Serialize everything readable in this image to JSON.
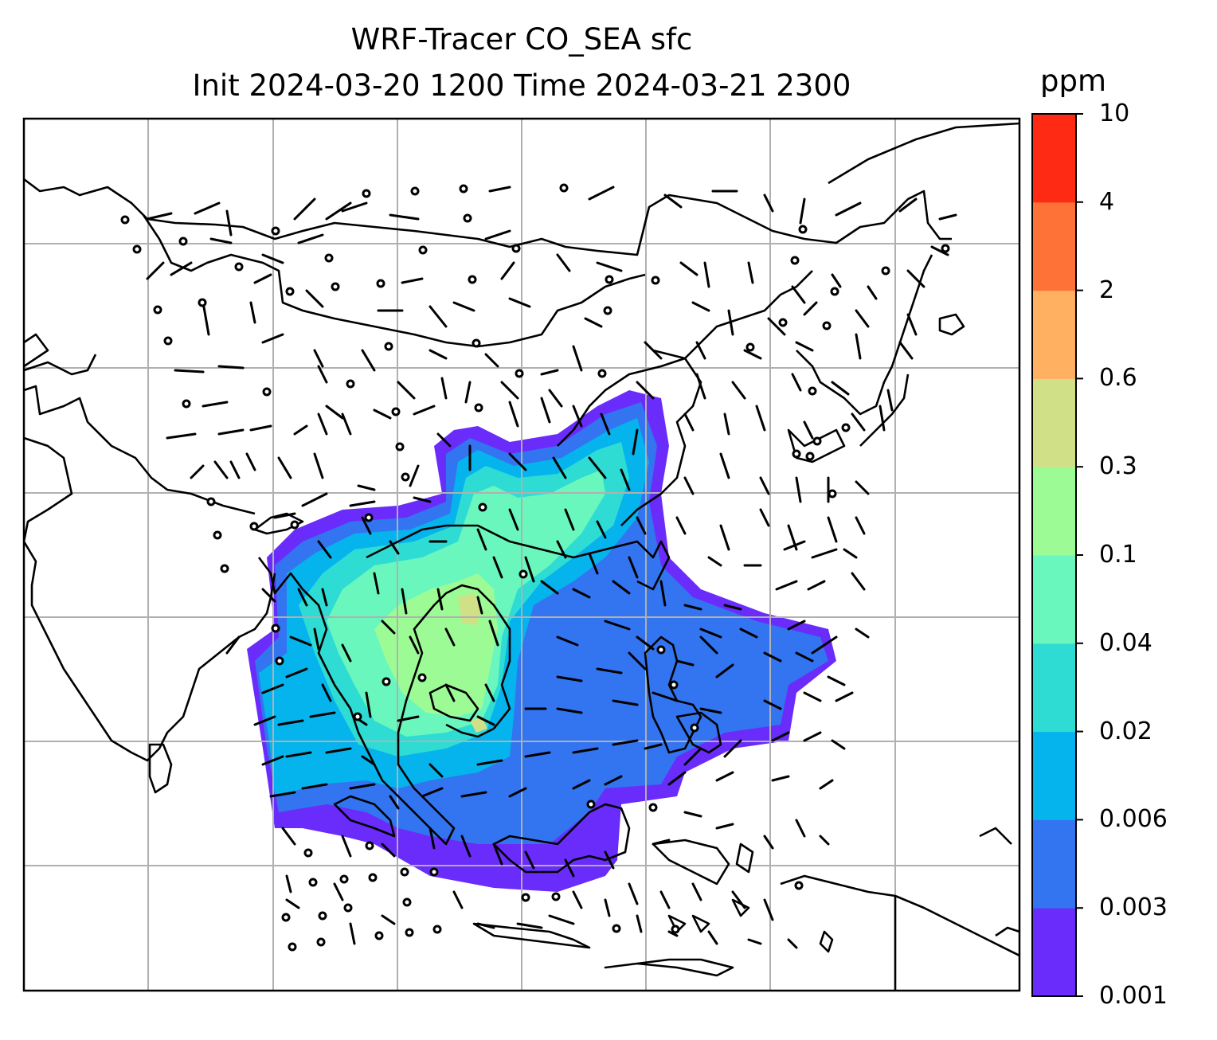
{
  "title": {
    "line1": "WRF-Tracer CO_SEA sfc",
    "line2": "Init 2024-03-20 1200 Time 2024-03-21 2300"
  },
  "colorbar": {
    "unit": "ppm",
    "ticks": [
      "0.001",
      "0.003",
      "0.006",
      "0.02",
      "0.04",
      "0.1",
      "0.3",
      "0.6",
      "2",
      "4",
      "10"
    ],
    "colors": [
      "#6a2cfb",
      "#3374f0",
      "#05b4ec",
      "#2fdcd4",
      "#6af7bd",
      "#9dfb96",
      "#cfe087",
      "#ffb060",
      "#ff7237",
      "#ff2a14"
    ]
  },
  "map": {
    "gridlines": true,
    "field": "CO_SEA surface tracer concentration",
    "vectors": "wind barbs"
  }
}
